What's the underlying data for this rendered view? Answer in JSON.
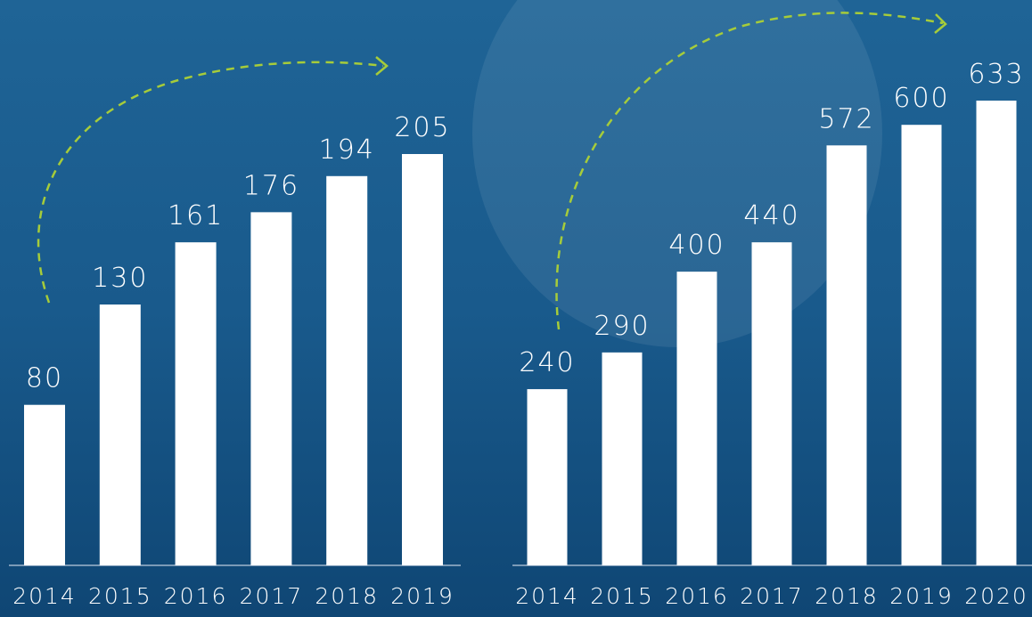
{
  "chart_data": [
    {
      "type": "bar",
      "categories": [
        "2014",
        "2015",
        "2016",
        "2017",
        "2018",
        "2019"
      ],
      "values": [
        80,
        130,
        161,
        176,
        194,
        205
      ],
      "color": "#ffffff"
    },
    {
      "type": "bar",
      "categories": [
        "2014",
        "2015",
        "2016",
        "2017",
        "2018",
        "2019",
        "2020"
      ],
      "values": [
        240,
        290,
        400,
        440,
        572,
        600,
        633
      ],
      "color": "#ffffff"
    }
  ]
}
